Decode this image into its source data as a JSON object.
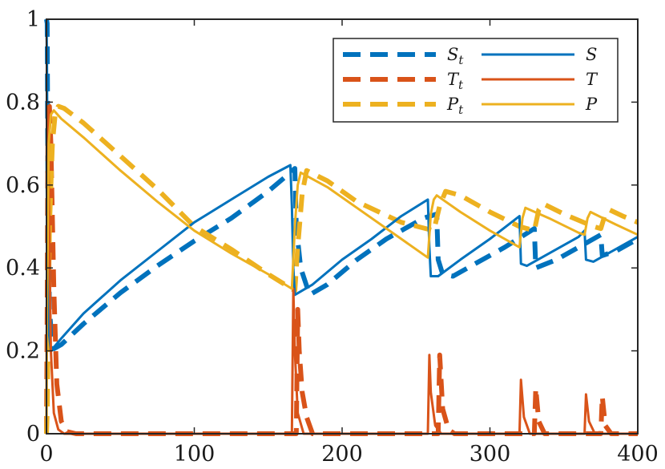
{
  "chart_data": {
    "type": "line",
    "title": "",
    "xlabel": "",
    "ylabel": "",
    "xlim": [
      0,
      400
    ],
    "ylim": [
      0,
      1
    ],
    "x_ticks": [
      "0",
      "100",
      "200",
      "300",
      "400"
    ],
    "y_ticks": [
      "0",
      "0.2",
      "0.4",
      "0.6",
      "0.8",
      "1"
    ],
    "x_tick_values": [
      0,
      100,
      200,
      300,
      400
    ],
    "y_tick_values": [
      0,
      0.2,
      0.4,
      0.6,
      0.8,
      1
    ],
    "grid": false,
    "legend_position": "top-right",
    "legend": [
      {
        "label": "S",
        "subscript": "t",
        "style": "dashed",
        "color": "#0072BD"
      },
      {
        "label": "S",
        "subscript": "",
        "style": "solid",
        "color": "#0072BD"
      },
      {
        "label": "T",
        "subscript": "t",
        "style": "dashed",
        "color": "#D95319"
      },
      {
        "label": "T",
        "subscript": "",
        "style": "solid",
        "color": "#D95319"
      },
      {
        "label": "P",
        "subscript": "t",
        "style": "dashed",
        "color": "#EDB120"
      },
      {
        "label": "P",
        "subscript": "",
        "style": "solid",
        "color": "#EDB120"
      }
    ],
    "series": [
      {
        "name": "S_t",
        "color": "#0072BD",
        "style": "dashed",
        "points": [
          [
            0,
            1
          ],
          [
            0.5,
            0.99
          ],
          [
            1,
            0.6
          ],
          [
            2,
            0.3
          ],
          [
            4,
            0.21
          ],
          [
            5,
            0.205
          ],
          [
            10,
            0.215
          ],
          [
            25,
            0.265
          ],
          [
            50,
            0.34
          ],
          [
            75,
            0.405
          ],
          [
            100,
            0.465
          ],
          [
            125,
            0.52
          ],
          [
            150,
            0.585
          ],
          [
            165,
            0.63
          ],
          [
            168,
            0.64
          ],
          [
            169,
            0.5
          ],
          [
            172,
            0.4
          ],
          [
            178,
            0.335
          ],
          [
            190,
            0.36
          ],
          [
            210,
            0.42
          ],
          [
            230,
            0.47
          ],
          [
            255,
            0.52
          ],
          [
            264,
            0.53
          ],
          [
            265,
            0.42
          ],
          [
            268,
            0.385
          ],
          [
            275,
            0.38
          ],
          [
            290,
            0.41
          ],
          [
            310,
            0.45
          ],
          [
            330,
            0.495
          ],
          [
            331,
            0.4
          ],
          [
            345,
            0.42
          ],
          [
            365,
            0.46
          ],
          [
            375,
            0.48
          ],
          [
            376,
            0.43
          ],
          [
            385,
            0.44
          ],
          [
            400,
            0.47
          ]
        ]
      },
      {
        "name": "S",
        "color": "#0072BD",
        "style": "solid",
        "points": [
          [
            0,
            1
          ],
          [
            0.3,
            0.9
          ],
          [
            0.8,
            0.5
          ],
          [
            1.5,
            0.25
          ],
          [
            3,
            0.2
          ],
          [
            10,
            0.23
          ],
          [
            25,
            0.29
          ],
          [
            50,
            0.37
          ],
          [
            75,
            0.44
          ],
          [
            100,
            0.51
          ],
          [
            125,
            0.565
          ],
          [
            150,
            0.62
          ],
          [
            165,
            0.648
          ],
          [
            166,
            0.55
          ],
          [
            167,
            0.4
          ],
          [
            168,
            0.335
          ],
          [
            180,
            0.36
          ],
          [
            200,
            0.42
          ],
          [
            220,
            0.47
          ],
          [
            240,
            0.525
          ],
          [
            258,
            0.565
          ],
          [
            259,
            0.45
          ],
          [
            260,
            0.38
          ],
          [
            265,
            0.38
          ],
          [
            280,
            0.42
          ],
          [
            300,
            0.47
          ],
          [
            320,
            0.525
          ],
          [
            321,
            0.41
          ],
          [
            325,
            0.405
          ],
          [
            340,
            0.435
          ],
          [
            360,
            0.475
          ],
          [
            364,
            0.49
          ],
          [
            365,
            0.42
          ],
          [
            370,
            0.415
          ],
          [
            385,
            0.445
          ],
          [
            400,
            0.475
          ]
        ]
      },
      {
        "name": "T_t",
        "color": "#D95319",
        "style": "dashed",
        "points": [
          [
            0,
            0
          ],
          [
            0.5,
            0.3
          ],
          [
            1,
            0.7
          ],
          [
            2,
            0.79
          ],
          [
            3,
            0.7
          ],
          [
            5,
            0.35
          ],
          [
            7,
            0.12
          ],
          [
            10,
            0.03
          ],
          [
            14,
            0.005
          ],
          [
            20,
            0
          ],
          [
            169,
            0
          ],
          [
            170,
            0.3
          ],
          [
            171,
            0.2
          ],
          [
            173,
            0.1
          ],
          [
            176,
            0.04
          ],
          [
            180,
            0
          ],
          [
            265,
            0
          ],
          [
            266,
            0.19
          ],
          [
            268,
            0.06
          ],
          [
            272,
            0.01
          ],
          [
            276,
            0
          ],
          [
            330,
            0
          ],
          [
            331,
            0.11
          ],
          [
            333,
            0.03
          ],
          [
            337,
            0
          ],
          [
            375,
            0
          ],
          [
            376,
            0.09
          ],
          [
            378,
            0.02
          ],
          [
            382,
            0
          ],
          [
            400,
            0
          ]
        ]
      },
      {
        "name": "T",
        "color": "#D95319",
        "style": "solid",
        "points": [
          [
            0,
            0
          ],
          [
            0.3,
            0.5
          ],
          [
            0.8,
            0.79
          ],
          [
            1.5,
            0.6
          ],
          [
            3,
            0.2
          ],
          [
            5,
            0.05
          ],
          [
            8,
            0.01
          ],
          [
            12,
            0
          ],
          [
            166,
            0
          ],
          [
            167,
            0.35
          ],
          [
            168,
            0.2
          ],
          [
            170,
            0.05
          ],
          [
            174,
            0
          ],
          [
            258,
            0
          ],
          [
            259,
            0.19
          ],
          [
            260,
            0.1
          ],
          [
            263,
            0.02
          ],
          [
            267,
            0
          ],
          [
            320,
            0
          ],
          [
            321,
            0.13
          ],
          [
            323,
            0.04
          ],
          [
            327,
            0
          ],
          [
            364,
            0
          ],
          [
            365,
            0.095
          ],
          [
            367,
            0.03
          ],
          [
            371,
            0
          ],
          [
            400,
            0
          ]
        ]
      },
      {
        "name": "P_t",
        "color": "#EDB120",
        "style": "dashed",
        "points": [
          [
            0,
            0
          ],
          [
            0.5,
            0.05
          ],
          [
            2,
            0.5
          ],
          [
            4,
            0.7
          ],
          [
            6,
            0.775
          ],
          [
            8,
            0.79
          ],
          [
            12,
            0.785
          ],
          [
            25,
            0.75
          ],
          [
            50,
            0.67
          ],
          [
            75,
            0.59
          ],
          [
            100,
            0.5
          ],
          [
            125,
            0.445
          ],
          [
            150,
            0.385
          ],
          [
            168,
            0.345
          ],
          [
            170,
            0.45
          ],
          [
            173,
            0.58
          ],
          [
            176,
            0.635
          ],
          [
            190,
            0.61
          ],
          [
            210,
            0.56
          ],
          [
            240,
            0.51
          ],
          [
            262,
            0.49
          ],
          [
            266,
            0.55
          ],
          [
            270,
            0.585
          ],
          [
            280,
            0.575
          ],
          [
            300,
            0.535
          ],
          [
            320,
            0.5
          ],
          [
            330,
            0.49
          ],
          [
            333,
            0.54
          ],
          [
            336,
            0.555
          ],
          [
            350,
            0.53
          ],
          [
            370,
            0.5
          ],
          [
            375,
            0.495
          ],
          [
            378,
            0.53
          ],
          [
            381,
            0.54
          ],
          [
            390,
            0.525
          ],
          [
            400,
            0.51
          ]
        ]
      },
      {
        "name": "P",
        "color": "#EDB120",
        "style": "solid",
        "points": [
          [
            0,
            0
          ],
          [
            0.3,
            0.3
          ],
          [
            1.5,
            0.7
          ],
          [
            3,
            0.77
          ],
          [
            5,
            0.78
          ],
          [
            10,
            0.76
          ],
          [
            25,
            0.715
          ],
          [
            50,
            0.635
          ],
          [
            75,
            0.56
          ],
          [
            100,
            0.49
          ],
          [
            125,
            0.435
          ],
          [
            150,
            0.385
          ],
          [
            166,
            0.35
          ],
          [
            168,
            0.5
          ],
          [
            170,
            0.6
          ],
          [
            172,
            0.63
          ],
          [
            190,
            0.595
          ],
          [
            210,
            0.545
          ],
          [
            240,
            0.47
          ],
          [
            258,
            0.425
          ],
          [
            260,
            0.53
          ],
          [
            262,
            0.565
          ],
          [
            264,
            0.575
          ],
          [
            280,
            0.535
          ],
          [
            300,
            0.49
          ],
          [
            320,
            0.45
          ],
          [
            322,
            0.52
          ],
          [
            324,
            0.545
          ],
          [
            340,
            0.52
          ],
          [
            360,
            0.485
          ],
          [
            364,
            0.48
          ],
          [
            366,
            0.52
          ],
          [
            368,
            0.535
          ],
          [
            385,
            0.505
          ],
          [
            400,
            0.48
          ]
        ]
      }
    ]
  }
}
